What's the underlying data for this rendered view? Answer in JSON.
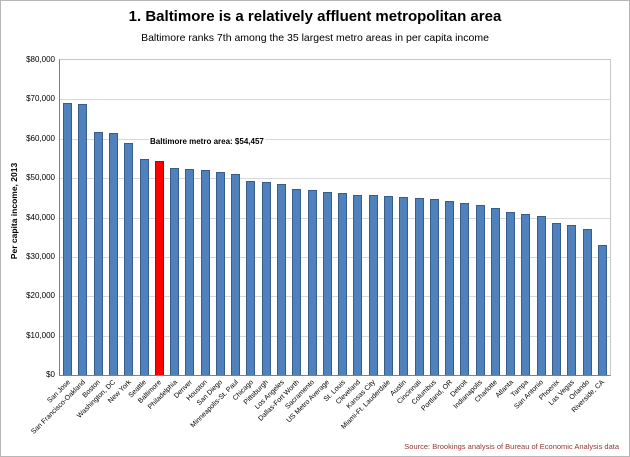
{
  "header": {
    "title": "1. Baltimore is a relatively affluent metropolitan area",
    "subtitle": "Baltimore ranks 7th among the 35 largest metro areas in per capita income"
  },
  "source": "Source: Brookings analysis of Bureau of Economic Analysis data",
  "colors": {
    "bar": "#4f81bd",
    "bar_border": "#385d8a",
    "highlight": "#ff0000",
    "highlight_border": "#c00000",
    "gridline": "#d9d9d9",
    "axis": "#808080"
  },
  "chart_data": {
    "type": "bar",
    "title": "1. Baltimore is a relatively affluent metropolitan area",
    "subtitle": "Baltimore ranks 7th among the 35 largest metro areas in per capita income",
    "xlabel": "",
    "ylabel": "Per capita income, 2013",
    "ylim": [
      0,
      80000
    ],
    "ytick_step": 10000,
    "ytick_labels": [
      "$0",
      "$10,000",
      "$20,000",
      "$30,000",
      "$40,000",
      "$50,000",
      "$60,000",
      "$70,000",
      "$80,000"
    ],
    "grid": true,
    "annotation": "Baltimore metro area: $54,457",
    "highlight_category": "Baltimore",
    "highlight_value": 54457,
    "categories": [
      "San Jose",
      "San Francisco-Oakland",
      "Boston",
      "Washington, DC",
      "New York",
      "Seattle",
      "Baltimore",
      "Philadelphia",
      "Denver",
      "Houston",
      "San Diego",
      "Minneapolis-St. Paul",
      "Chicago",
      "Pittsburgh",
      "Los Angeles",
      "Dallas-Fort Worth",
      "Sacramento",
      "US Metro Average",
      "St. Louis",
      "Cleveland",
      "Kansas City",
      "Miami-Ft. Lauderdale",
      "Austin",
      "Cincinnati",
      "Columbus",
      "Portland, OR",
      "Detroit",
      "Indianapolis",
      "Charlotte",
      "Atlanta",
      "Tampa",
      "San Antonio",
      "Phoenix",
      "Las Vegas",
      "Orlando",
      "Riverside, CA"
    ],
    "values": [
      69000,
      68800,
      61700,
      61500,
      59000,
      54800,
      54457,
      52600,
      52200,
      52000,
      51500,
      51000,
      49300,
      49000,
      48400,
      47200,
      47000,
      46600,
      46200,
      45800,
      45600,
      45500,
      45200,
      45000,
      44600,
      44200,
      43700,
      43200,
      42300,
      41500,
      41000,
      40300,
      38600,
      38200,
      37000,
      33000
    ]
  }
}
